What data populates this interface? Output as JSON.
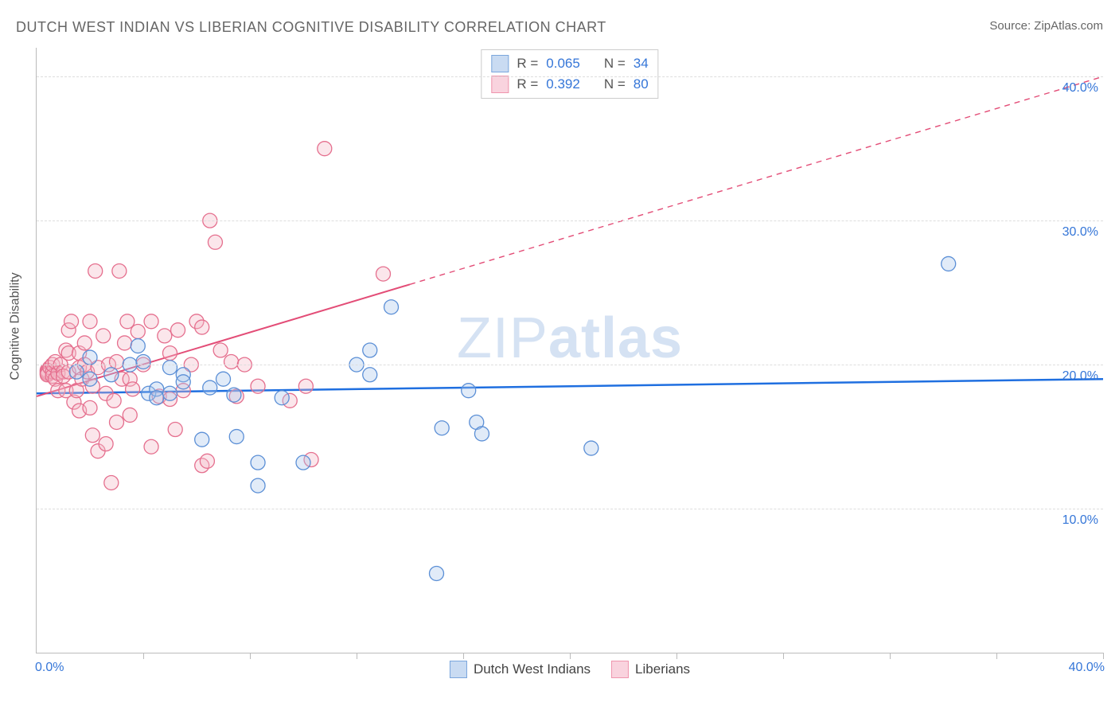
{
  "title": "DUTCH WEST INDIAN VS LIBERIAN COGNITIVE DISABILITY CORRELATION CHART",
  "source_label": "Source:",
  "source_name": "ZipAtlas.com",
  "ylabel": "Cognitive Disability",
  "watermark_thin": "ZIP",
  "watermark_bold": "atlas",
  "chart": {
    "type": "scatter",
    "x_range": [
      0,
      40
    ],
    "y_range": [
      0,
      42
    ],
    "y_gridlines": [
      10,
      20,
      30,
      40
    ],
    "y_tick_labels": [
      "10.0%",
      "20.0%",
      "30.0%",
      "40.0%"
    ],
    "x_ticks_minor": [
      4,
      8,
      12,
      16,
      20,
      24,
      28,
      32,
      36,
      40
    ],
    "x_axis_left_label": "0.0%",
    "x_axis_right_label": "40.0%",
    "background_color": "#ffffff",
    "grid_color": "#dddddd",
    "axis_color": "#bbbbbb",
    "value_text_color": "#3576d8",
    "marker_radius": 9,
    "marker_stroke_width": 1.3,
    "marker_fill_opacity": 0.35,
    "series": [
      {
        "name": "Dutch West Indians",
        "color_stroke": "#5b8fd6",
        "color_fill": "#a9c7ec",
        "swatch_fill": "#c9dbf2",
        "swatch_border": "#7ba6dd",
        "R": "0.065",
        "N": "34",
        "trend": {
          "y_at_x0": 18.0,
          "y_at_xmax": 19.0,
          "line_color": "#1f6fe0",
          "line_width": 2.5,
          "solid_until_x": 40
        },
        "points": [
          [
            1.5,
            19.5
          ],
          [
            2.0,
            20.5
          ],
          [
            2.0,
            19.0
          ],
          [
            2.8,
            19.3
          ],
          [
            3.5,
            20.0
          ],
          [
            3.8,
            21.3
          ],
          [
            4.2,
            18.0
          ],
          [
            4.5,
            18.3
          ],
          [
            4.5,
            17.7
          ],
          [
            5.0,
            18.0
          ],
          [
            5.5,
            19.3
          ],
          [
            5.5,
            18.8
          ],
          [
            5.0,
            19.8
          ],
          [
            6.2,
            14.8
          ],
          [
            6.5,
            18.4
          ],
          [
            7.0,
            19.0
          ],
          [
            7.4,
            17.9
          ],
          [
            7.5,
            15.0
          ],
          [
            8.3,
            13.2
          ],
          [
            8.3,
            11.6
          ],
          [
            9.2,
            17.7
          ],
          [
            10.0,
            13.2
          ],
          [
            12.0,
            20.0
          ],
          [
            12.5,
            19.3
          ],
          [
            12.5,
            21.0
          ],
          [
            13.3,
            24.0
          ],
          [
            15.0,
            5.5
          ],
          [
            15.2,
            15.6
          ],
          [
            16.2,
            18.2
          ],
          [
            16.5,
            16.0
          ],
          [
            16.7,
            15.2
          ],
          [
            20.8,
            14.2
          ],
          [
            34.2,
            27.0
          ],
          [
            4.0,
            20.2
          ]
        ]
      },
      {
        "name": "Liberians",
        "color_stroke": "#e56f8e",
        "color_fill": "#f3b6c7",
        "swatch_fill": "#f9d3de",
        "swatch_border": "#ef95ad",
        "R": "0.392",
        "N": "80",
        "trend": {
          "y_at_x0": 17.8,
          "y_at_xmax": 40.0,
          "line_color": "#e34d77",
          "line_width": 2,
          "solid_until_x": 14
        },
        "points": [
          [
            0.4,
            19.6
          ],
          [
            0.4,
            19.5
          ],
          [
            0.4,
            19.4
          ],
          [
            0.4,
            19.3
          ],
          [
            0.5,
            19.8
          ],
          [
            0.6,
            19.5
          ],
          [
            0.6,
            19.2
          ],
          [
            0.6,
            20.0
          ],
          [
            0.7,
            19.0
          ],
          [
            0.7,
            20.2
          ],
          [
            0.8,
            19.4
          ],
          [
            0.8,
            18.2
          ],
          [
            0.9,
            20.0
          ],
          [
            1.0,
            19.5
          ],
          [
            1.0,
            19.2
          ],
          [
            1.1,
            21.0
          ],
          [
            1.1,
            18.2
          ],
          [
            1.2,
            19.5
          ],
          [
            1.2,
            22.4
          ],
          [
            1.2,
            20.8
          ],
          [
            1.3,
            23.0
          ],
          [
            1.4,
            17.4
          ],
          [
            1.5,
            18.2
          ],
          [
            1.6,
            19.8
          ],
          [
            1.6,
            20.8
          ],
          [
            1.6,
            16.8
          ],
          [
            1.7,
            19.0
          ],
          [
            1.8,
            20.0
          ],
          [
            1.8,
            21.5
          ],
          [
            1.9,
            19.5
          ],
          [
            2.0,
            17.0
          ],
          [
            2.0,
            23.0
          ],
          [
            2.1,
            15.1
          ],
          [
            2.1,
            18.5
          ],
          [
            2.2,
            26.5
          ],
          [
            2.3,
            14.0
          ],
          [
            2.3,
            19.8
          ],
          [
            2.5,
            22.0
          ],
          [
            2.6,
            18.0
          ],
          [
            2.6,
            14.5
          ],
          [
            2.7,
            20.0
          ],
          [
            2.8,
            11.8
          ],
          [
            2.9,
            17.5
          ],
          [
            3.0,
            20.2
          ],
          [
            3.0,
            16.0
          ],
          [
            3.1,
            26.5
          ],
          [
            3.2,
            19.0
          ],
          [
            3.3,
            21.5
          ],
          [
            3.4,
            23.0
          ],
          [
            3.5,
            19.0
          ],
          [
            3.5,
            16.5
          ],
          [
            3.6,
            18.3
          ],
          [
            3.8,
            22.3
          ],
          [
            4.0,
            20.0
          ],
          [
            4.3,
            23.0
          ],
          [
            4.3,
            14.3
          ],
          [
            4.6,
            17.8
          ],
          [
            4.8,
            22.0
          ],
          [
            5.0,
            20.8
          ],
          [
            5.0,
            17.6
          ],
          [
            5.2,
            15.5
          ],
          [
            5.3,
            22.4
          ],
          [
            5.5,
            18.2
          ],
          [
            5.8,
            20.0
          ],
          [
            6.0,
            23.0
          ],
          [
            6.2,
            13.0
          ],
          [
            6.2,
            22.6
          ],
          [
            6.4,
            13.3
          ],
          [
            6.5,
            30.0
          ],
          [
            6.7,
            28.5
          ],
          [
            6.9,
            21.0
          ],
          [
            7.3,
            20.2
          ],
          [
            7.5,
            17.8
          ],
          [
            7.8,
            20.0
          ],
          [
            8.3,
            18.5
          ],
          [
            9.5,
            17.5
          ],
          [
            10.1,
            18.5
          ],
          [
            10.3,
            13.4
          ],
          [
            10.8,
            35.0
          ],
          [
            13.0,
            26.3
          ]
        ]
      }
    ]
  },
  "legend_top_labels": {
    "R": "R =",
    "N": "N ="
  },
  "legend_bottom": [
    "Dutch West Indians",
    "Liberians"
  ]
}
